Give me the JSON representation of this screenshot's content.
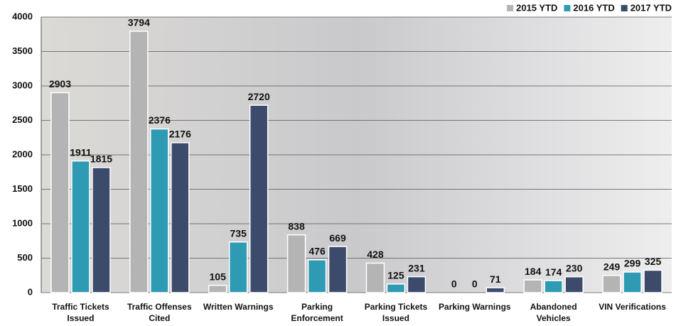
{
  "chart_data": {
    "type": "bar",
    "categories": [
      "Traffic Tickets Issued",
      "Traffic Offenses Cited",
      "Written Warnings",
      "Parking Enforcement",
      "Parking Tickets Issued",
      "Parking Warnings",
      "Abandoned Vehicles",
      "VIN Verifications"
    ],
    "series": [
      {
        "name": "2015 YTD",
        "color": "#b4b4b4",
        "values": [
          2903,
          3794,
          105,
          838,
          428,
          0,
          184,
          249
        ]
      },
      {
        "name": "2016 YTD",
        "color": "#2f9ab3",
        "values": [
          1911,
          2376,
          735,
          476,
          125,
          0,
          174,
          299
        ]
      },
      {
        "name": "2017 YTD",
        "color": "#3c4a6c",
        "values": [
          1815,
          2176,
          2720,
          669,
          231,
          71,
          230,
          325
        ]
      }
    ],
    "ylim": [
      0,
      4000
    ],
    "yticks": [
      0,
      500,
      1000,
      1500,
      2000,
      2500,
      3000,
      3500,
      4000
    ],
    "grid": true,
    "legend": "top-right"
  }
}
